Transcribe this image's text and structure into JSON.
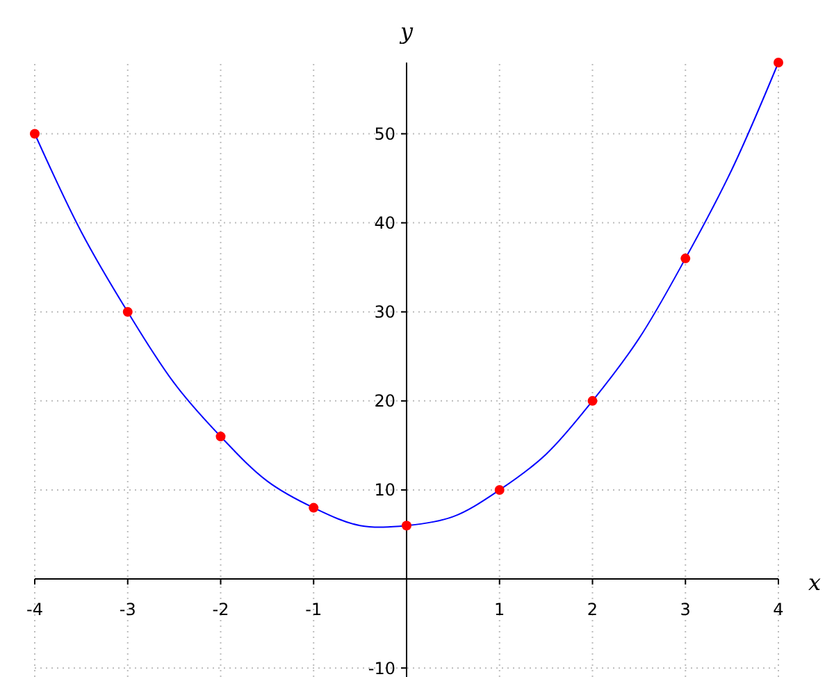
{
  "chart_data": {
    "type": "line",
    "xlabel": "x",
    "ylabel": "y",
    "xlim": [
      -4,
      4
    ],
    "ylim": [
      -11,
      58
    ],
    "xticks": [
      -4,
      -3,
      -2,
      -1,
      1,
      2,
      3,
      4
    ],
    "yticks": [
      -10,
      10,
      20,
      30,
      40,
      50
    ],
    "grid": true,
    "series": [
      {
        "color": "#0000ff",
        "marker": "none",
        "x": [
          -4,
          -3.5,
          -3,
          -2.5,
          -2,
          -1.5,
          -1,
          -0.5,
          0,
          0.5,
          1,
          1.5,
          2,
          2.5,
          3,
          3.5,
          4
        ],
        "values": [
          50,
          39,
          30,
          22,
          16,
          11,
          8,
          6,
          6,
          7,
          10,
          14,
          20,
          27,
          36,
          46,
          58
        ]
      },
      {
        "type": "scatter",
        "color": "#ff0000",
        "marker": "circle",
        "x": [
          -4,
          -3,
          -2,
          -1,
          0,
          1,
          2,
          3,
          4
        ],
        "values": [
          50,
          30,
          16,
          8,
          6,
          10,
          20,
          36,
          58
        ]
      }
    ]
  }
}
